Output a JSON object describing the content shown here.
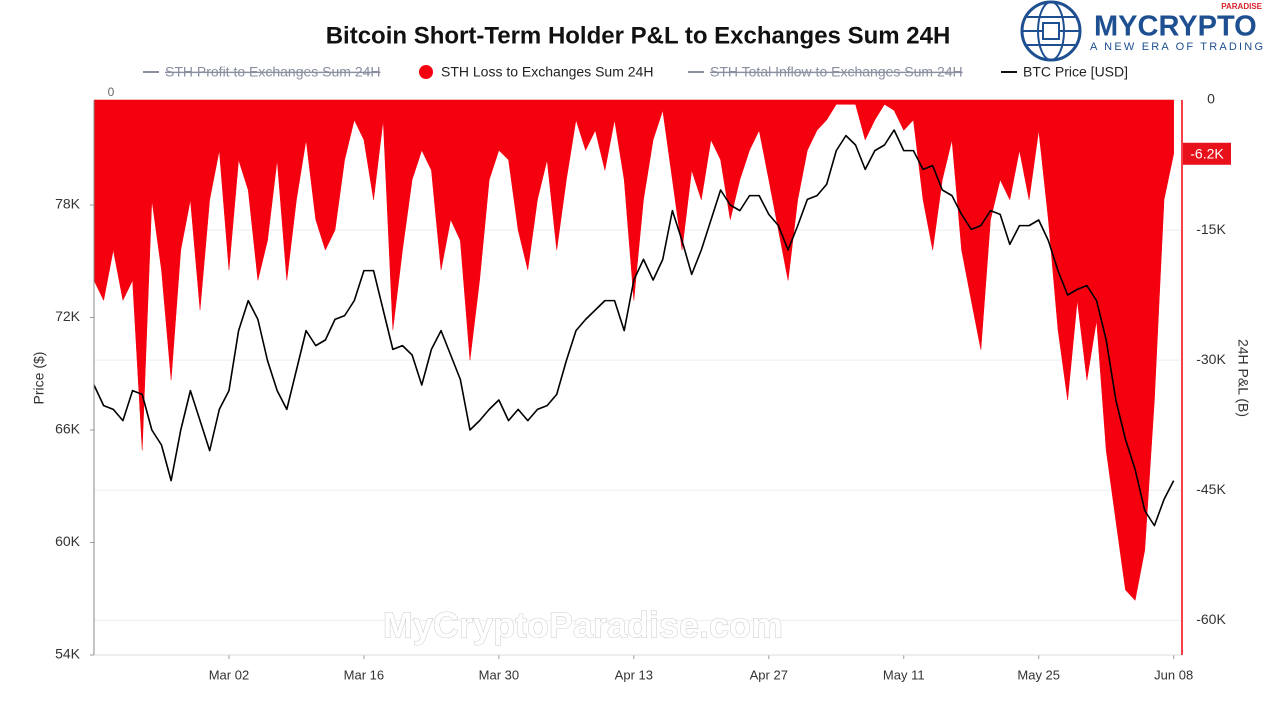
{
  "chart_data": {
    "type": "line-area",
    "title": "Bitcoin Short-Term Holder P&L to Exchanges Sum 24H",
    "ylabel": "Price ($)",
    "y2label": "24H P&L (B)",
    "top_left_label": "0",
    "categories": [
      "Feb 17",
      "Feb 18",
      "Feb 19",
      "Feb 20",
      "Feb 21",
      "Feb 22",
      "Feb 23",
      "Feb 24",
      "Feb 25",
      "Feb 26",
      "Feb 27",
      "Feb 28",
      "Feb 29",
      "Mar 01",
      "Mar 02",
      "Mar 03",
      "Mar 04",
      "Mar 05",
      "Mar 06",
      "Mar 07",
      "Mar 08",
      "Mar 09",
      "Mar 10",
      "Mar 11",
      "Mar 12",
      "Mar 13",
      "Mar 14",
      "Mar 15",
      "Mar 16",
      "Mar 17",
      "Mar 18",
      "Mar 19",
      "Mar 20",
      "Mar 21",
      "Mar 22",
      "Mar 23",
      "Mar 24",
      "Mar 25",
      "Mar 26",
      "Mar 27",
      "Mar 28",
      "Mar 29",
      "Mar 30",
      "Mar 31",
      "Apr 01",
      "Apr 02",
      "Apr 03",
      "Apr 04",
      "Apr 05",
      "Apr 06",
      "Apr 07",
      "Apr 08",
      "Apr 09",
      "Apr 10",
      "Apr 11",
      "Apr 12",
      "Apr 13",
      "Apr 14",
      "Apr 15",
      "Apr 16",
      "Apr 17",
      "Apr 18",
      "Apr 19",
      "Apr 20",
      "Apr 21",
      "Apr 22",
      "Apr 23",
      "Apr 24",
      "Apr 25",
      "Apr 26",
      "Apr 27",
      "Apr 28",
      "Apr 29",
      "Apr 30",
      "May 01",
      "May 02",
      "May 03",
      "May 04",
      "May 05",
      "May 06",
      "May 07",
      "May 08",
      "May 09",
      "May 10",
      "May 11",
      "May 12",
      "May 13",
      "May 14",
      "May 15",
      "May 16",
      "May 17",
      "May 18",
      "May 19",
      "May 20",
      "May 21",
      "May 22",
      "May 23",
      "May 24",
      "May 25",
      "May 26",
      "May 27",
      "May 28",
      "May 29",
      "May 30",
      "May 31",
      "Jun 01",
      "Jun 02",
      "Jun 03",
      "Jun 04",
      "Jun 05",
      "Jun 06",
      "Jun 07",
      "Jun 08"
    ],
    "xticks": [
      "Mar 02",
      "Mar 16",
      "Mar 30",
      "Apr 13",
      "Apr 27",
      "May 11",
      "May 25",
      "Jun 08"
    ],
    "series": [
      {
        "name": "STH Profit to Exchanges Sum 24H",
        "color": "#8a8fa0",
        "visible": false
      },
      {
        "name": "STH Loss to Exchanges Sum 24H",
        "color": "#f5000f",
        "axis": "y2",
        "visible": true,
        "values": [
          -20800,
          -23100,
          -17300,
          -23100,
          -20800,
          -40400,
          -11500,
          -19600,
          -32300,
          -17300,
          -11500,
          -24200,
          -11500,
          -5800,
          -19600,
          -6900,
          -10400,
          -20800,
          -16200,
          -6900,
          -20800,
          -11500,
          -4600,
          -13800,
          -17300,
          -15000,
          -6900,
          -2300,
          -4600,
          -11500,
          -2300,
          -26500,
          -17300,
          -9200,
          -5800,
          -8100,
          -19600,
          -13800,
          -16200,
          -30000,
          -20800,
          -9200,
          -5800,
          -6900,
          -15000,
          -19600,
          -11500,
          -6900,
          -17300,
          -9200,
          -2300,
          -5800,
          -3500,
          -8100,
          -2300,
          -9200,
          -23100,
          -11500,
          -4600,
          -1200,
          -9200,
          -17300,
          -8100,
          -11500,
          -4600,
          -6900,
          -13800,
          -9200,
          -5800,
          -3500,
          -9200,
          -15000,
          -20800,
          -11500,
          -5800,
          -3500,
          -2300,
          -500,
          -500,
          -500,
          -4600,
          -2300,
          -500,
          -1200,
          -3500,
          -2300,
          -11500,
          -17300,
          -9200,
          -4600,
          -17300,
          -23100,
          -28800,
          -13800,
          -9200,
          -11500,
          -5800,
          -11500,
          -3500,
          -13800,
          -26500,
          -34600,
          -23100,
          -32300,
          -25400,
          -40400,
          -48500,
          -56500,
          -57700,
          -51900,
          -34600,
          -11500,
          -6200
        ]
      },
      {
        "name": "STH Total Inflow to  Exchanges Sum 24H",
        "color": "#8a8fa0",
        "visible": false
      },
      {
        "name": "BTC Price [USD]",
        "color": "#000000",
        "axis": "y",
        "visible": true,
        "values": [
          68400,
          67300,
          67100,
          66500,
          68100,
          67900,
          66000,
          65200,
          63300,
          66000,
          68100,
          66500,
          64900,
          67100,
          68100,
          71300,
          72900,
          71900,
          69700,
          68100,
          67100,
          69200,
          71300,
          70500,
          70800,
          71900,
          72100,
          72900,
          74500,
          74500,
          72400,
          70300,
          70500,
          70000,
          68400,
          70300,
          71300,
          70000,
          68700,
          66000,
          66500,
          67100,
          67600,
          66500,
          67100,
          66500,
          67100,
          67300,
          67900,
          69700,
          71300,
          71900,
          72400,
          72900,
          72900,
          71300,
          74000,
          75100,
          74000,
          75100,
          77700,
          76100,
          74300,
          75600,
          77200,
          78800,
          78000,
          77700,
          78500,
          78500,
          77500,
          76900,
          75600,
          76900,
          78300,
          78500,
          79100,
          80900,
          81700,
          81200,
          79900,
          80900,
          81200,
          82000,
          80900,
          80900,
          79900,
          80100,
          78800,
          78500,
          77500,
          76700,
          76900,
          77700,
          77500,
          75900,
          76900,
          76900,
          77200,
          76100,
          74500,
          73200,
          73500,
          73700,
          72900,
          70800,
          67600,
          65500,
          63900,
          61700,
          60900,
          62300,
          63300
        ]
      }
    ],
    "ylim": [
      54000,
      83600
    ],
    "yticks": [
      {
        "value": 54000,
        "label": "54K"
      },
      {
        "value": 60000,
        "label": "60K"
      },
      {
        "value": 66000,
        "label": "66K"
      },
      {
        "value": 72000,
        "label": "72K"
      },
      {
        "value": 78000,
        "label": "78K"
      }
    ],
    "y2lim": [
      -64000,
      0
    ],
    "y2ticks": [
      0,
      {
        "value": -15000,
        "label": "-15K"
      },
      {
        "value": -30000,
        "label": "-30K"
      },
      {
        "value": -45000,
        "label": "-45K"
      },
      {
        "value": -60000,
        "label": "-60K"
      }
    ],
    "current_marker": {
      "value": -6200,
      "label": "-6.2K"
    },
    "grid": true
  },
  "logo": {
    "name": "MYCRYPTO",
    "tag": "PARADISE",
    "slogan": "A NEW ERA OF TRADING"
  },
  "watermark": "MyCryptoParadise.com"
}
